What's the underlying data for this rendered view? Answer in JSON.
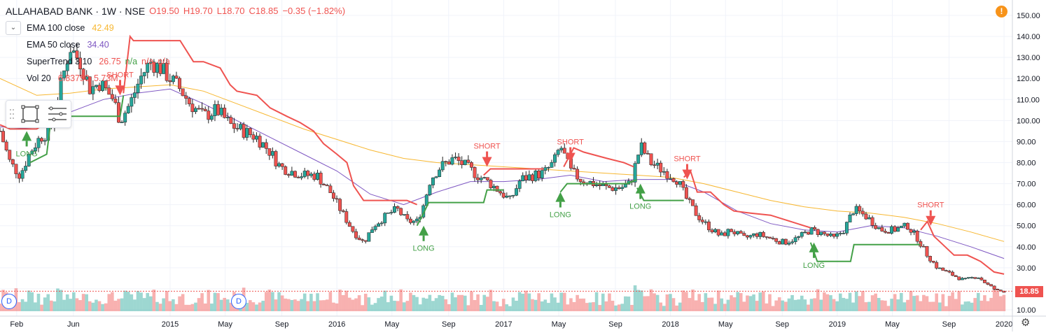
{
  "header": {
    "symbol": "ALLAHABAD BANK · 1W · NSE",
    "open": "O19.50",
    "high": "H19.70",
    "low": "L18.70",
    "close": "C18.85",
    "change": "−0.35 (−1.82%)"
  },
  "indicators": [
    {
      "name": "EMA 100 close",
      "value": "42.49",
      "color": "#f7b731"
    },
    {
      "name": "EMA 50 close",
      "value": "34.40",
      "color": "#7e57c2"
    },
    {
      "name": "SuperTrend 3 10",
      "value": "26.75",
      "value2": "n/a",
      "value3": "n/a",
      "value4": "n/a",
      "color": "#ef5350"
    },
    {
      "name": "Vol 20",
      "value": "6.83750",
      "value2": "5.73M",
      "color": "#ef5350"
    }
  ],
  "price_label": "18.85",
  "alert_label": "!",
  "dividend_marker": "D",
  "colors": {
    "up": "#26a69a",
    "down": "#ef5350",
    "ema100": "#f7b731",
    "ema50": "#7e57c2",
    "st_up": "#43a047",
    "st_down": "#ef5350",
    "grid": "#f0f3fa"
  },
  "chart_data": {
    "type": "candlestick",
    "y_axis": {
      "min": 10,
      "max": 150,
      "ticks": [
        "150.00",
        "140.00",
        "130.00",
        "120.00",
        "110.00",
        "100.00",
        "90.00",
        "80.00",
        "70.00",
        "60.00",
        "50.00",
        "40.00",
        "30.00",
        "20.00",
        "10.00"
      ]
    },
    "x_axis": {
      "start": "2014-02",
      "end": "2020-01",
      "ticks": [
        {
          "t": 2014.08,
          "label": "Feb"
        },
        {
          "t": 2014.42,
          "label": "Jun"
        },
        {
          "t": 2015.0,
          "label": "2015"
        },
        {
          "t": 2015.33,
          "label": "May"
        },
        {
          "t": 2015.67,
          "label": "Sep"
        },
        {
          "t": 2016.0,
          "label": "2016"
        },
        {
          "t": 2016.33,
          "label": "May"
        },
        {
          "t": 2016.67,
          "label": "Sep"
        },
        {
          "t": 2017.0,
          "label": "2017"
        },
        {
          "t": 2017.33,
          "label": "May"
        },
        {
          "t": 2017.67,
          "label": "Sep"
        },
        {
          "t": 2018.0,
          "label": "2018"
        },
        {
          "t": 2018.33,
          "label": "May"
        },
        {
          "t": 2018.67,
          "label": "Sep"
        },
        {
          "t": 2019.0,
          "label": "2019"
        },
        {
          "t": 2019.33,
          "label": "May"
        },
        {
          "t": 2019.67,
          "label": "Sep"
        },
        {
          "t": 2020.0,
          "label": "2020"
        }
      ]
    },
    "close_path": [
      [
        2013.98,
        95
      ],
      [
        2014.04,
        80
      ],
      [
        2014.1,
        74
      ],
      [
        2014.16,
        85
      ],
      [
        2014.22,
        92
      ],
      [
        2014.28,
        95
      ],
      [
        2014.34,
        115
      ],
      [
        2014.4,
        135
      ],
      [
        2014.46,
        128
      ],
      [
        2014.52,
        115
      ],
      [
        2014.58,
        118
      ],
      [
        2014.66,
        110
      ],
      [
        2014.7,
        100
      ],
      [
        2014.76,
        108
      ],
      [
        2014.82,
        120
      ],
      [
        2014.88,
        128
      ],
      [
        2014.94,
        125
      ],
      [
        2015.0,
        120
      ],
      [
        2015.06,
        115
      ],
      [
        2015.12,
        108
      ],
      [
        2015.2,
        102
      ],
      [
        2015.28,
        105
      ],
      [
        2015.36,
        98
      ],
      [
        2015.44,
        95
      ],
      [
        2015.52,
        92
      ],
      [
        2015.6,
        85
      ],
      [
        2015.66,
        78
      ],
      [
        2015.72,
        76
      ],
      [
        2015.8,
        74
      ],
      [
        2015.88,
        74
      ],
      [
        2015.96,
        66
      ],
      [
        2016.04,
        55
      ],
      [
        2016.1,
        47
      ],
      [
        2016.16,
        42
      ],
      [
        2016.22,
        50
      ],
      [
        2016.3,
        55
      ],
      [
        2016.36,
        58
      ],
      [
        2016.42,
        52
      ],
      [
        2016.48,
        52
      ],
      [
        2016.52,
        60
      ],
      [
        2016.56,
        72
      ],
      [
        2016.62,
        78
      ],
      [
        2016.7,
        82
      ],
      [
        2016.78,
        78
      ],
      [
        2016.84,
        74
      ],
      [
        2016.92,
        70
      ],
      [
        2016.98,
        66
      ],
      [
        2017.04,
        62
      ],
      [
        2017.1,
        72
      ],
      [
        2017.18,
        74
      ],
      [
        2017.24,
        75
      ],
      [
        2017.3,
        80
      ],
      [
        2017.34,
        88
      ],
      [
        2017.4,
        76
      ],
      [
        2017.46,
        72
      ],
      [
        2017.54,
        70
      ],
      [
        2017.62,
        68
      ],
      [
        2017.7,
        68
      ],
      [
        2017.76,
        70
      ],
      [
        2017.82,
        88
      ],
      [
        2017.88,
        80
      ],
      [
        2017.96,
        76
      ],
      [
        2018.04,
        72
      ],
      [
        2018.1,
        62
      ],
      [
        2018.16,
        55
      ],
      [
        2018.22,
        50
      ],
      [
        2018.3,
        45
      ],
      [
        2018.36,
        48
      ],
      [
        2018.44,
        44
      ],
      [
        2018.52,
        46
      ],
      [
        2018.6,
        44
      ],
      [
        2018.68,
        42
      ],
      [
        2018.76,
        44
      ],
      [
        2018.84,
        48
      ],
      [
        2018.92,
        46
      ],
      [
        2018.98,
        44
      ],
      [
        2019.04,
        48
      ],
      [
        2019.1,
        58
      ],
      [
        2019.18,
        54
      ],
      [
        2019.26,
        48
      ],
      [
        2019.34,
        48
      ],
      [
        2019.42,
        50
      ],
      [
        2019.48,
        44
      ],
      [
        2019.54,
        36
      ],
      [
        2019.6,
        30
      ],
      [
        2019.68,
        27
      ],
      [
        2019.76,
        24
      ],
      [
        2019.84,
        26
      ],
      [
        2019.9,
        22
      ],
      [
        2019.96,
        19
      ],
      [
        2020.0,
        18.85
      ]
    ],
    "ema100": [
      [
        2013.98,
        120
      ],
      [
        2014.2,
        112
      ],
      [
        2014.4,
        113
      ],
      [
        2014.6,
        115
      ],
      [
        2014.8,
        116
      ],
      [
        2015.0,
        117
      ],
      [
        2015.2,
        114
      ],
      [
        2015.4,
        108
      ],
      [
        2015.6,
        102
      ],
      [
        2015.8,
        96
      ],
      [
        2016.0,
        91
      ],
      [
        2016.2,
        86
      ],
      [
        2016.4,
        82
      ],
      [
        2016.6,
        80
      ],
      [
        2016.8,
        79
      ],
      [
        2017.0,
        78
      ],
      [
        2017.2,
        77
      ],
      [
        2017.4,
        76
      ],
      [
        2017.6,
        75
      ],
      [
        2017.8,
        74
      ],
      [
        2018.0,
        73
      ],
      [
        2018.2,
        70
      ],
      [
        2018.4,
        66
      ],
      [
        2018.6,
        62
      ],
      [
        2018.8,
        59
      ],
      [
        2019.0,
        57
      ],
      [
        2019.2,
        56
      ],
      [
        2019.4,
        54
      ],
      [
        2019.6,
        51
      ],
      [
        2019.8,
        47
      ],
      [
        2020.0,
        42.49
      ]
    ],
    "ema50": [
      [
        2013.98,
        97
      ],
      [
        2014.2,
        96
      ],
      [
        2014.4,
        104
      ],
      [
        2014.6,
        110
      ],
      [
        2014.8,
        113
      ],
      [
        2015.0,
        115
      ],
      [
        2015.2,
        108
      ],
      [
        2015.4,
        100
      ],
      [
        2015.6,
        92
      ],
      [
        2015.8,
        84
      ],
      [
        2016.0,
        76
      ],
      [
        2016.2,
        65
      ],
      [
        2016.4,
        60
      ],
      [
        2016.6,
        66
      ],
      [
        2016.8,
        71
      ],
      [
        2017.0,
        71
      ],
      [
        2017.2,
        72
      ],
      [
        2017.4,
        74
      ],
      [
        2017.6,
        71
      ],
      [
        2017.8,
        72
      ],
      [
        2018.0,
        72
      ],
      [
        2018.2,
        66
      ],
      [
        2018.4,
        57
      ],
      [
        2018.6,
        51
      ],
      [
        2018.8,
        48
      ],
      [
        2019.0,
        47
      ],
      [
        2019.2,
        50
      ],
      [
        2019.4,
        49
      ],
      [
        2019.6,
        45
      ],
      [
        2019.8,
        40
      ],
      [
        2020.0,
        34.4
      ]
    ],
    "supertrend_up": [
      [
        [
          2014.16,
          80
        ],
        [
          2014.26,
          84
        ],
        [
          2014.28,
          97
        ],
        [
          2014.3,
          102
        ],
        [
          2014.7,
          102
        ],
        [
          2014.72,
          112
        ]
      ],
      [
        [
          2016.48,
          50
        ],
        [
          2016.52,
          56
        ],
        [
          2016.55,
          61
        ],
        [
          2016.88,
          61
        ],
        [
          2016.9,
          67
        ],
        [
          2017.0,
          67
        ]
      ],
      [
        [
          2017.34,
          66
        ],
        [
          2017.38,
          70
        ],
        [
          2017.74,
          70
        ],
        [
          2017.8,
          72
        ]
      ],
      [
        [
          2017.8,
          68
        ],
        [
          2017.84,
          62
        ],
        [
          2018.08,
          62
        ]
      ],
      [
        [
          2018.84,
          42
        ],
        [
          2018.88,
          33
        ],
        [
          2019.08,
          33
        ],
        [
          2019.1,
          41
        ],
        [
          2019.5,
          41
        ]
      ]
    ],
    "supertrend_down": [
      [
        [
          2013.98,
          98
        ],
        [
          2014.04,
          96
        ],
        [
          2014.2,
          96
        ],
        [
          2014.22,
          97
        ]
      ],
      [
        [
          2014.72,
          113
        ],
        [
          2014.76,
          140
        ],
        [
          2014.78,
          138
        ],
        [
          2015.06,
          138
        ],
        [
          2015.14,
          128
        ],
        [
          2015.2,
          128
        ],
        [
          2015.3,
          125
        ],
        [
          2015.36,
          117
        ],
        [
          2015.4,
          114
        ],
        [
          2015.52,
          112
        ],
        [
          2015.6,
          106
        ],
        [
          2015.7,
          102
        ],
        [
          2015.78,
          99
        ],
        [
          2015.86,
          95
        ],
        [
          2015.92,
          89
        ],
        [
          2016.0,
          84
        ],
        [
          2016.06,
          80
        ],
        [
          2016.1,
          69
        ],
        [
          2016.16,
          62
        ],
        [
          2016.42,
          62
        ],
        [
          2016.48,
          60
        ]
      ],
      [
        [
          2016.88,
          74
        ],
        [
          2016.92,
          77
        ],
        [
          2017.24,
          77
        ]
      ],
      [
        [
          2017.36,
          78
        ],
        [
          2017.42,
          87
        ],
        [
          2017.48,
          85
        ],
        [
          2017.62,
          82
        ],
        [
          2017.72,
          80
        ],
        [
          2017.78,
          78
        ]
      ],
      [
        [
          2018.08,
          73
        ],
        [
          2018.12,
          76
        ],
        [
          2018.16,
          66
        ],
        [
          2018.24,
          66
        ],
        [
          2018.32,
          60
        ],
        [
          2018.38,
          57
        ],
        [
          2018.48,
          56
        ],
        [
          2018.6,
          55
        ],
        [
          2018.72,
          52
        ],
        [
          2018.8,
          50
        ],
        [
          2018.84,
          49
        ]
      ],
      [
        [
          2019.5,
          48
        ],
        [
          2019.54,
          52
        ],
        [
          2019.58,
          45
        ],
        [
          2019.62,
          42
        ],
        [
          2019.7,
          36
        ],
        [
          2019.78,
          36
        ],
        [
          2019.86,
          33
        ],
        [
          2019.94,
          28
        ],
        [
          2020.0,
          27
        ]
      ]
    ],
    "signals": [
      {
        "t": 2014.14,
        "type": "LONG",
        "price": 95
      },
      {
        "t": 2014.7,
        "type": "SHORT",
        "price": 112
      },
      {
        "t": 2016.52,
        "type": "LONG",
        "price": 50
      },
      {
        "t": 2016.9,
        "type": "SHORT",
        "price": 78
      },
      {
        "t": 2017.34,
        "type": "LONG",
        "price": 66
      },
      {
        "t": 2017.4,
        "type": "SHORT",
        "price": 80
      },
      {
        "t": 2017.82,
        "type": "LONG",
        "price": 70
      },
      {
        "t": 2018.1,
        "type": "SHORT",
        "price": 72
      },
      {
        "t": 2018.86,
        "type": "LONG",
        "price": 42
      },
      {
        "t": 2019.56,
        "type": "SHORT",
        "price": 50
      }
    ],
    "last_price": 18.85,
    "volume_max_label": "Vol 20"
  }
}
